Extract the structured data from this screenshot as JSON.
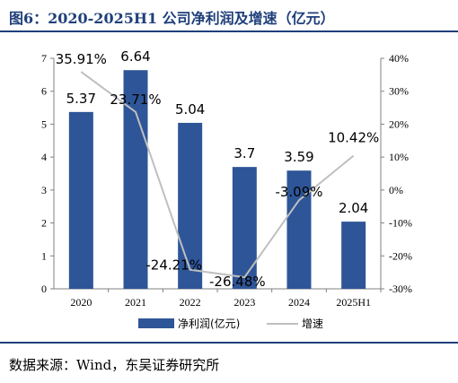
{
  "figure": {
    "title": "图6：2020-2025H1 公司净利润及增速（亿元）",
    "source": "数据来源：Wind，东吴证券研究所"
  },
  "colors": {
    "bar": "#2e5597",
    "line": "#bfbfbf",
    "rule": "#1f3f7a"
  },
  "chart_data": {
    "type": "bar",
    "title": "",
    "xlabel": "",
    "ylabel": "",
    "categories": [
      "2020",
      "2021",
      "2022",
      "2023",
      "2024",
      "2025H1"
    ],
    "series": [
      {
        "name": "净利润(亿元)",
        "type": "bar",
        "axis": "left",
        "values": [
          5.37,
          6.64,
          5.04,
          3.7,
          3.59,
          2.04
        ],
        "labels": [
          "5.37",
          "6.64",
          "5.04",
          "3.7",
          "3.59",
          "2.04"
        ]
      },
      {
        "name": "增速",
        "type": "line",
        "axis": "right",
        "values": [
          35.91,
          23.71,
          -24.21,
          -26.48,
          -3.09,
          10.42
        ],
        "labels": [
          "35.91%",
          "23.71%",
          "-24.21%",
          "-26.48%",
          "-3.09%",
          "10.42%"
        ]
      }
    ],
    "y_left": {
      "lim": [
        0,
        7
      ],
      "ticks": [
        "0",
        "1",
        "2",
        "3",
        "4",
        "5",
        "6",
        "7"
      ]
    },
    "y_right": {
      "lim": [
        -30,
        40
      ],
      "ticks": [
        "-30%",
        "-20%",
        "-10%",
        "0%",
        "10%",
        "20%",
        "30%",
        "40%"
      ]
    },
    "grid": false,
    "legend": "bottom-center"
  }
}
